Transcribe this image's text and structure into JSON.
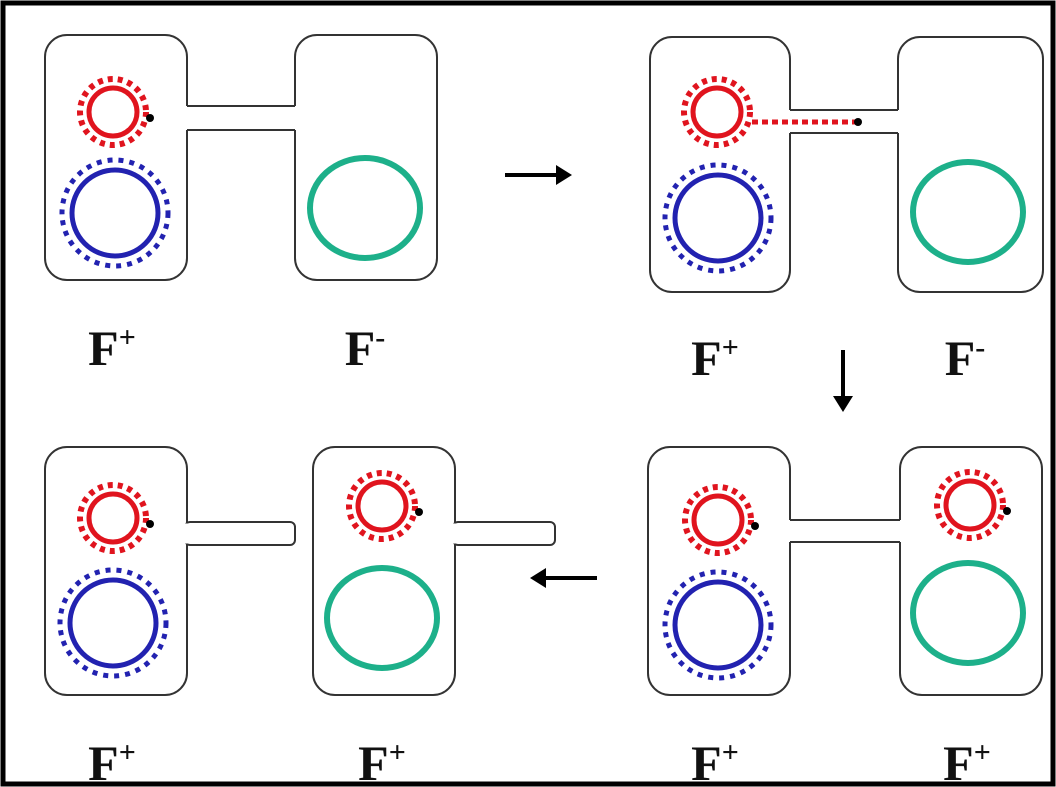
{
  "panels": [
    {
      "cells": [
        {
          "label": {
            "base": "F",
            "sup": "+"
          }
        },
        {
          "label": {
            "base": "F",
            "sup": "-"
          }
        }
      ]
    },
    {
      "cells": [
        {
          "label": {
            "base": "F",
            "sup": "+"
          }
        },
        {
          "label": {
            "base": "F",
            "sup": "-"
          }
        }
      ]
    },
    {
      "cells": [
        {
          "label": {
            "base": "F",
            "sup": "+"
          }
        },
        {
          "label": {
            "base": "F",
            "sup": "+"
          }
        }
      ]
    },
    {
      "cells": [
        {
          "label": {
            "base": "F",
            "sup": "+"
          }
        },
        {
          "label": {
            "base": "F",
            "sup": "+"
          }
        }
      ]
    }
  ]
}
